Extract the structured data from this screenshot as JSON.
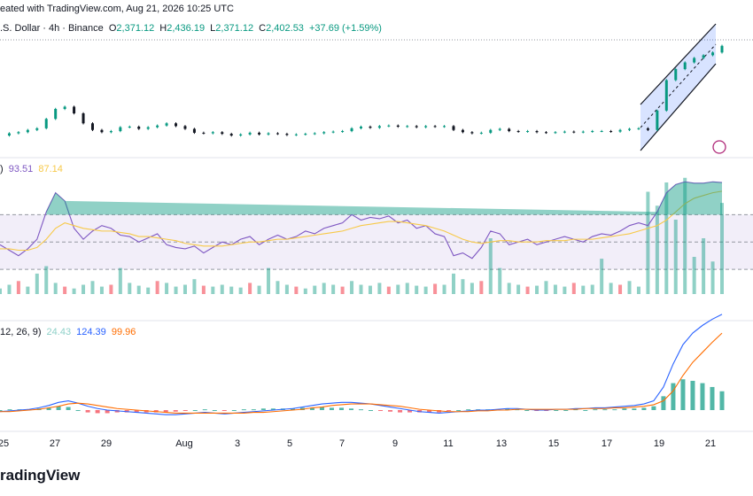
{
  "header": {
    "created": "eated with TradingView.com, Aug 21, 2026 10:25 UTC",
    "symbol": ".S. Dollar · 4h · Binance",
    "open_label": "O",
    "open": "2,371.12",
    "high_label": "H",
    "high": "2,436.19",
    "low_label": "L",
    "low": "2,371.12",
    "close_label": "C",
    "close": "2,402.53",
    "change": "+37.69 (+1.59%)"
  },
  "rsi_legend": {
    "prefix": ")",
    "value": "93.51",
    "ma": "87.14"
  },
  "macd_legend": {
    "params": "12, 26, 9)",
    "histogram": "24.43",
    "macd": "124.39",
    "signal": "99.96"
  },
  "brand": "radingView",
  "colors": {
    "up": "#089981",
    "down": "#f23645",
    "rsi": "#7e57c2",
    "rsi_ma": "#f7c948",
    "macd": "#2962ff",
    "signal": "#ff6d00",
    "channel": "#2962ff"
  },
  "chart_data": [
    {
      "type": "candlestick",
      "x_ticks": [
        "25",
        "27",
        "29",
        "Aug",
        "3",
        "5",
        "7",
        "9",
        "11",
        "13",
        "15",
        "17",
        "19",
        "21"
      ],
      "price_path": [
        2240,
        2244,
        2246,
        2250,
        2253,
        2270,
        2288,
        2292,
        2280,
        2262,
        2250,
        2246,
        2248,
        2255,
        2256,
        2252,
        2255,
        2258,
        2262,
        2257,
        2252,
        2245,
        2244,
        2246,
        2243,
        2240,
        2242,
        2245,
        2242,
        2244,
        2243,
        2241,
        2242,
        2243,
        2244,
        2246,
        2247,
        2248,
        2253,
        2256,
        2254,
        2257,
        2258,
        2256,
        2257,
        2255,
        2257,
        2256,
        2257,
        2250,
        2246,
        2244,
        2245,
        2250,
        2252,
        2248,
        2247,
        2248,
        2246,
        2245,
        2246,
        2247,
        2246,
        2247,
        2248,
        2248,
        2247,
        2250,
        2252,
        2253,
        2250,
        2285,
        2340,
        2360,
        2372,
        2380,
        2385,
        2390,
        2402
      ]
    },
    {
      "type": "line",
      "name": "RSI",
      "series": [
        {
          "name": "RSI",
          "values": [
            48,
            44,
            40,
            45,
            52,
            72,
            86,
            80,
            60,
            52,
            58,
            62,
            60,
            55,
            54,
            50,
            53,
            56,
            48,
            46,
            45,
            47,
            42,
            46,
            50,
            48,
            52,
            54,
            48,
            52,
            55,
            52,
            54,
            58,
            56,
            60,
            62,
            64,
            70,
            66,
            68,
            67,
            69,
            64,
            66,
            60,
            62,
            56,
            54,
            40,
            42,
            38,
            46,
            58,
            56,
            48,
            50,
            52,
            48,
            50,
            52,
            54,
            52,
            50,
            54,
            56,
            55,
            58,
            62,
            64,
            62,
            72,
            86,
            92,
            94,
            93,
            93,
            94,
            93.51
          ]
        },
        {
          "name": "RSI MA",
          "values": [
            45,
            45,
            44,
            44,
            46,
            52,
            60,
            64,
            62,
            60,
            59,
            58,
            58,
            57,
            56,
            54,
            54,
            53,
            52,
            51,
            49,
            48,
            47,
            47,
            47,
            48,
            49,
            50,
            50,
            51,
            52,
            52,
            53,
            54,
            55,
            56,
            57,
            58,
            60,
            62,
            63,
            64,
            65,
            65,
            64,
            63,
            62,
            60,
            58,
            55,
            52,
            50,
            49,
            50,
            51,
            51,
            50,
            50,
            50,
            51,
            51,
            51,
            52,
            52,
            52,
            53,
            54,
            55,
            56,
            58,
            60,
            62,
            66,
            72,
            78,
            82,
            84,
            86,
            87.14
          ]
        }
      ],
      "levels": [
        70,
        50,
        30
      ]
    },
    {
      "type": "line",
      "name": "MACD",
      "series": [
        {
          "name": "MACD",
          "values": [
            -2,
            -1,
            0,
            1,
            3,
            6,
            10,
            12,
            9,
            5,
            2,
            0,
            -1,
            -2,
            -3,
            -4,
            -5,
            -6,
            -6,
            -5,
            -4,
            -3,
            -4,
            -5,
            -4,
            -3,
            -2,
            -1,
            0,
            1,
            2,
            4,
            6,
            8,
            9,
            10,
            10,
            9,
            8,
            6,
            4,
            2,
            0,
            -2,
            -3,
            -4,
            -3,
            -2,
            -1,
            0,
            0,
            1,
            2,
            2,
            1,
            0,
            0,
            1,
            1,
            2,
            2,
            3,
            3,
            4,
            5,
            6,
            8,
            12,
            30,
            60,
            85,
            100,
            110,
            118,
            124.39
          ]
        },
        {
          "name": "Signal",
          "values": [
            -2,
            -2,
            -1,
            0,
            1,
            3,
            5,
            8,
            9,
            8,
            6,
            4,
            2,
            1,
            0,
            -1,
            -2,
            -3,
            -4,
            -4,
            -4,
            -4,
            -4,
            -4,
            -4,
            -4,
            -3,
            -3,
            -2,
            -1,
            0,
            1,
            3,
            4,
            6,
            7,
            8,
            8,
            8,
            7,
            6,
            5,
            3,
            1,
            0,
            -1,
            -2,
            -2,
            -2,
            -1,
            -1,
            0,
            0,
            1,
            1,
            1,
            1,
            1,
            1,
            1,
            2,
            2,
            2,
            3,
            3,
            4,
            5,
            7,
            12,
            25,
            45,
            62,
            75,
            88,
            99.96
          ]
        }
      ]
    }
  ]
}
